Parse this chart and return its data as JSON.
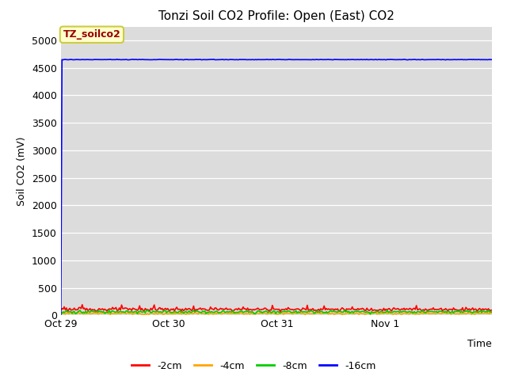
{
  "title": "Tonzi Soil CO2 Profile: Open (East) CO2",
  "ylabel": "Soil CO2 (mV)",
  "xlabel": "Time",
  "watermark": "TZ_soilco2",
  "ylim": [
    0,
    5250
  ],
  "yticks": [
    0,
    500,
    1000,
    1500,
    2000,
    2500,
    3000,
    3500,
    4000,
    4500,
    5000
  ],
  "background_color": "#dcdcdc",
  "series_order": [
    "-2cm",
    "-4cm",
    "-8cm",
    "-16cm"
  ],
  "series": {
    "-2cm": {
      "color": "#ff0000"
    },
    "-4cm": {
      "color": "#ffa500"
    },
    "-8cm": {
      "color": "#00cc00"
    },
    "-16cm": {
      "color": "#0000ff"
    }
  },
  "x_tick_labels": [
    "Oct 29",
    "Oct 30",
    "Oct 31",
    "Nov 1"
  ],
  "n_points": 384,
  "title_fontsize": 11,
  "label_fontsize": 9,
  "tick_fontsize": 9,
  "legend_fontsize": 9,
  "watermark_fontsize": 9,
  "line_width": 1.2
}
